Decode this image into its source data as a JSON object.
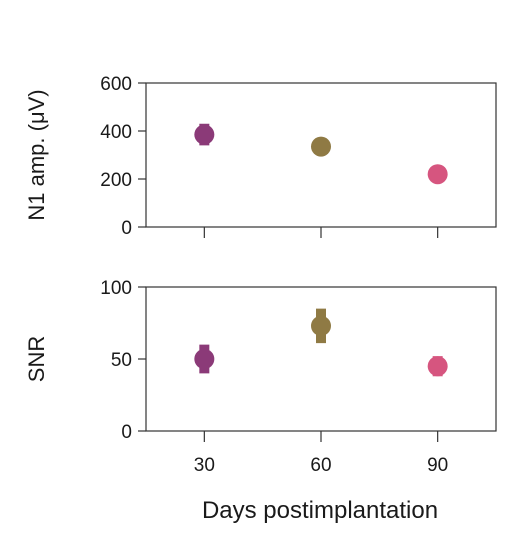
{
  "chart_data": {
    "type": "scatter",
    "xlabel": "Days postimplantation",
    "x": [
      30,
      60,
      90
    ],
    "x_ticks": [
      "30",
      "60",
      "90"
    ],
    "xlim": [
      15,
      105
    ],
    "point_colors": [
      "#8b3a78",
      "#8f7a44",
      "#d6557f"
    ],
    "panels": [
      {
        "ylabel": "N1 amp. (μV)",
        "ylim": [
          0,
          600
        ],
        "y_ticks": [
          "0",
          "200",
          "400",
          "600"
        ],
        "y": [
          385,
          335,
          220
        ],
        "error": [
          45,
          35,
          20
        ]
      },
      {
        "ylabel": "SNR",
        "ylim": [
          0,
          100
        ],
        "y_ticks": [
          "0",
          "50",
          "100"
        ],
        "y": [
          50,
          73,
          45
        ],
        "error": [
          10,
          12,
          7
        ]
      }
    ]
  }
}
